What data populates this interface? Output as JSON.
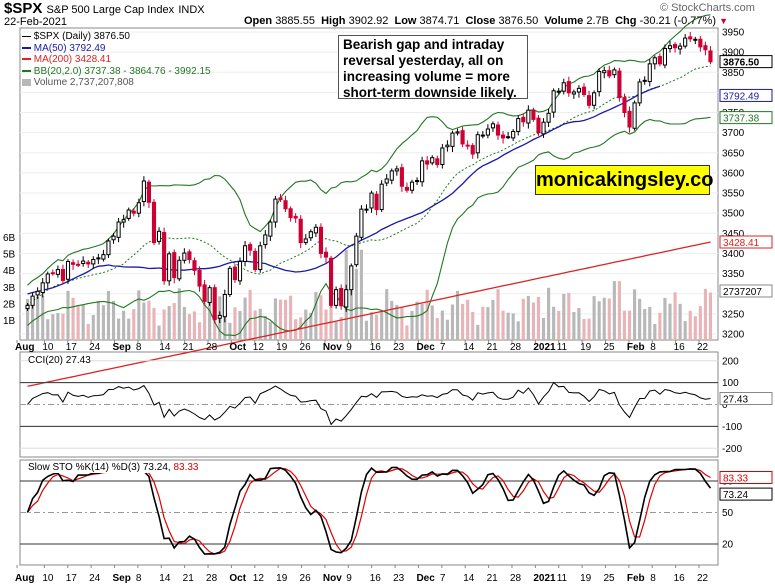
{
  "header": {
    "symbol": "$SPX",
    "name": "S&P 500 Large Cap Index",
    "exchange": "INDX",
    "date": "22-Feb-2021",
    "watermark": "© StockCharts.com",
    "open_label": "Open",
    "open": "3885.55",
    "high_label": "High",
    "high": "3902.92",
    "low_label": "Low",
    "low": "3874.71",
    "close_label": "Close",
    "close": "3876.50",
    "volume_label": "Volume",
    "volume": "2.7B",
    "chg_label": "Chg",
    "chg": "-30.21 (-0.77%)",
    "chg_icon": "down-triangle-icon"
  },
  "legend": {
    "price": "$SPX (Daily) 3876.50",
    "ma50": "MA(50) 3792.49",
    "ma200": "MA(200) 3428.41",
    "bb": "BB(20,2.0) 3737.38 - 3864.76 - 3992.15",
    "volume": "Volume 2,737,207,808"
  },
  "annotation": "Bearish gap and intraday reversal yesterday, all on increasing volume = more short-term downside likely.",
  "brand_box": "monicakingsley.co",
  "cci_label": "CCI(20) 27.43",
  "sto_label_prefix": "Slow STO %K(14) %D(3)",
  "sto_k": "73.24",
  "sto_d": "83.33",
  "tags": {
    "price": "3876.50",
    "ma50": "3792.49",
    "bb_low": "3737.38",
    "ma200": "3428.41",
    "volume": "2737207",
    "cci": "27.43",
    "sto_d": "83.33",
    "sto_k": "73.24"
  },
  "colors": {
    "up_candle": "#000000",
    "down_candle": "#cc0033",
    "ma50": "#1a1aa6",
    "ma200": "#dd2222",
    "bollinger": "#227722",
    "volume_up": "#b8b8b8",
    "volume_down": "#e8b4b8",
    "cci_fill_positive": "#5a8a5a",
    "cci_fill_negative": "#9a6a6a",
    "sto_k": "#000000",
    "sto_d": "#dd0000"
  },
  "chart_data": [
    {
      "type": "candlestick",
      "title": "$SPX S&P 500 Large Cap Index INDX",
      "y_axis_ticks": [
        3200,
        3250,
        3300,
        3350,
        3400,
        3450,
        3500,
        3550,
        3600,
        3650,
        3700,
        3750,
        3800,
        3850,
        3900,
        3950
      ],
      "ylim": [
        3185,
        3960
      ],
      "volume_axis_ticks": [
        "1B",
        "2B",
        "3B",
        "4B",
        "5B",
        "6B"
      ],
      "x_tick_labels": [
        "Aug",
        "10",
        "17",
        "24",
        "Sep",
        "8",
        "14",
        "21",
        "28",
        "Oct",
        "12",
        "19",
        "26",
        "Nov",
        "9",
        "16",
        "23",
        "Dec",
        "7",
        "14",
        "21",
        "28",
        "2021",
        "11",
        "19",
        "25",
        "Feb",
        "8",
        "16",
        "22"
      ],
      "x_tick_bold": [
        "Aug",
        "Sep",
        "Oct",
        "Nov",
        "Dec",
        "2021",
        "Feb"
      ],
      "close": [
        3271,
        3294,
        3306,
        3327,
        3349,
        3351,
        3360,
        3333,
        3380,
        3373,
        3372,
        3381,
        3374,
        3385,
        3389,
        3397,
        3431,
        3443,
        3478,
        3484,
        3508,
        3500,
        3526,
        3580,
        3527,
        3427,
        3455,
        3332,
        3399,
        3340,
        3383,
        3401,
        3385,
        3358,
        3319,
        3281,
        3315,
        3236,
        3246,
        3298,
        3363,
        3335,
        3380,
        3419,
        3408,
        3360,
        3419,
        3446,
        3478,
        3535,
        3534,
        3511,
        3489,
        3488,
        3427,
        3436,
        3454,
        3465,
        3400,
        3391,
        3271,
        3310,
        3270,
        3310,
        3369,
        3443,
        3510,
        3510,
        3550,
        3509,
        3572,
        3585,
        3605,
        3610,
        3567,
        3557,
        3577,
        3581,
        3630,
        3622,
        3638,
        3621,
        3662,
        3669,
        3699,
        3702,
        3672,
        3668,
        3647,
        3695,
        3694,
        3709,
        3722,
        3694,
        3687,
        3690,
        3703,
        3735,
        3727,
        3756,
        3733,
        3700,
        3726,
        3748,
        3804,
        3803,
        3824,
        3799,
        3801,
        3810,
        3795,
        3768,
        3799,
        3852,
        3854,
        3841,
        3856,
        3787,
        3750,
        3714,
        3774,
        3826,
        3830,
        3871,
        3886,
        3871,
        3909,
        3916,
        3911,
        3915,
        3935,
        3933,
        3932,
        3913,
        3906,
        3876
      ],
      "ma50": {
        "start_value": 3190,
        "end_value": 3792.49
      },
      "ma200": {
        "start_value": 3070,
        "end_value": 3428.41
      },
      "bollinger": {
        "lower": 3737.38,
        "middle": 3864.76,
        "upper": 3992.15
      }
    },
    {
      "type": "line",
      "title": "CCI(20) 27.43",
      "y_axis_ticks": [
        -200,
        -100,
        0,
        100,
        200
      ],
      "ylim": [
        -240,
        240
      ],
      "series": [
        {
          "name": "CCI(20)",
          "last": 27.43
        }
      ]
    },
    {
      "type": "line",
      "title": "Slow STO %K(14) %D(3) 73.24, 83.33",
      "y_axis_ticks": [
        20,
        50,
        80
      ],
      "ylim": [
        0,
        100
      ],
      "series": [
        {
          "name": "%K(14)",
          "last": 73.24
        },
        {
          "name": "%D(3)",
          "last": 83.33
        }
      ]
    }
  ]
}
